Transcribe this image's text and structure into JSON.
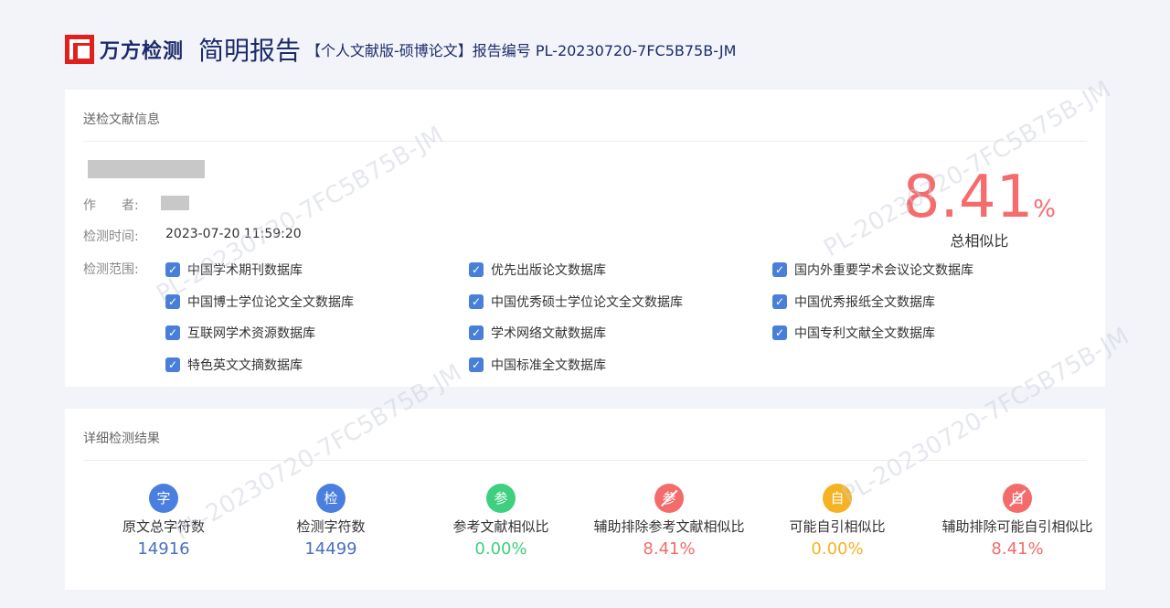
{
  "header": {
    "logo": "万方检测",
    "title": "简明报告",
    "subtitle": "【个人文献版-硕博论文】报告编号 PL-20230720-7FC5B75B-JM"
  },
  "watermark": "PL-20230720-7FC5B75B-JM",
  "info": {
    "section_title": "送检文献信息",
    "author_label": "作　　者:",
    "time_label": "检测时间:",
    "time_value": "2023-07-20 11:59:20",
    "scope_label": "检测范围:",
    "databases": [
      "中国学术期刊数据库",
      "优先出版论文数据库",
      "国内外重要学术会议论文数据库",
      "中国博士学位论文全文数据库",
      "中国优秀硕士学位论文全文数据库",
      "中国优秀报纸全文数据库",
      "互联网学术资源数据库",
      "学术网络文献数据库",
      "中国专利文献全文数据库",
      "特色英文文摘数据库",
      "中国标准全文数据库"
    ],
    "score": "8.41",
    "score_unit": "%",
    "score_label": "总相似比"
  },
  "results": {
    "section_title": "详细检测结果",
    "stats": [
      {
        "icon": "字",
        "label": "原文总字符数",
        "value": "14916",
        "color": "#4a7fe0",
        "value_color": "#4a6fc0"
      },
      {
        "icon": "检",
        "label": "检测字符数",
        "value": "14499",
        "color": "#4a7fe0",
        "value_color": "#4a6fc0"
      },
      {
        "icon": "参",
        "label": "参考文献相似比",
        "value": "0.00%",
        "color": "#3ecf7f",
        "value_color": "#3ecf7f"
      },
      {
        "icon": "参",
        "label": "辅助排除参考文献相似比",
        "value": "8.41%",
        "color": "#f46b6b",
        "value_color": "#f46b6b",
        "strike": true
      },
      {
        "icon": "自",
        "label": "可能自引相似比",
        "value": "0.00%",
        "color": "#f5b324",
        "value_color": "#f5b324"
      },
      {
        "icon": "自",
        "label": "辅助排除可能自引相似比",
        "value": "8.41%",
        "color": "#f46b6b",
        "value_color": "#f46b6b",
        "strike": true
      }
    ]
  }
}
